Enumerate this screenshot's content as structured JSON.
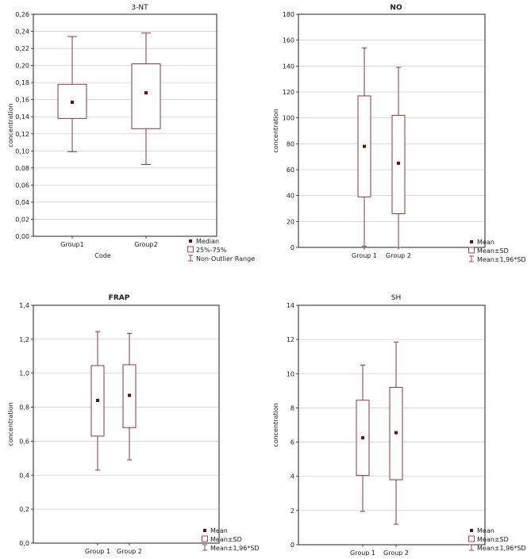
{
  "colors": {
    "box": "#8b3a3a",
    "marker": "#6b0d0d",
    "grid": "#d0d0d0",
    "frame": "#222222"
  },
  "chart_data": [
    {
      "type": "box",
      "title": "3-NT",
      "title_bold": false,
      "xlabel": "Code",
      "ylabel": "concentration",
      "ylim": [
        0,
        0.26
      ],
      "ytick_step": 0.02,
      "ytick_labels": [
        "0,00",
        "0,02",
        "0,04",
        "0,06",
        "0,08",
        "0,10",
        "0,12",
        "0,14",
        "0,16",
        "0,18",
        "0,20",
        "0,22",
        "0,24",
        "0,26"
      ],
      "categories": [
        "Group1",
        "Group2"
      ],
      "boxes": [
        {
          "center": 0.157,
          "q1": 0.138,
          "q3": 0.178,
          "low": 0.099,
          "high": 0.234
        },
        {
          "center": 0.168,
          "q1": 0.126,
          "q3": 0.202,
          "low": 0.084,
          "high": 0.238
        }
      ],
      "legend": [
        "Median",
        "25%-75%",
        "Non-Outlier Range"
      ]
    },
    {
      "type": "box",
      "title": "NO",
      "title_bold": true,
      "xlabel": "",
      "ylabel": "concentration",
      "ylim": [
        0,
        180
      ],
      "ytick_step": 20,
      "ytick_labels": [
        "0",
        "20",
        "40",
        "60",
        "80",
        "100",
        "120",
        "140",
        "160",
        "180"
      ],
      "categories": [
        "Group 1",
        "Group 2"
      ],
      "boxes": [
        {
          "center": 78,
          "q1": 39,
          "q3": 117,
          "low": 1,
          "high": 154
        },
        {
          "center": 65,
          "q1": 26,
          "q3": 102,
          "low": 0,
          "high": 139
        }
      ],
      "legend": [
        "Mean",
        "Mean±SD",
        "Mean±1,96*SD"
      ]
    },
    {
      "type": "box",
      "title": "FRAP",
      "title_bold": true,
      "xlabel": "",
      "ylabel": "concentration",
      "ylim": [
        0,
        1.4
      ],
      "ytick_step": 0.2,
      "ytick_labels": [
        "0,0",
        "0,2",
        "0,4",
        "0,6",
        "0,8",
        "1,0",
        "1,2",
        "1,4"
      ],
      "categories": [
        "Group 1",
        "Group 2"
      ],
      "boxes": [
        {
          "center": 0.84,
          "q1": 0.63,
          "q3": 1.045,
          "low": 0.43,
          "high": 1.245
        },
        {
          "center": 0.87,
          "q1": 0.68,
          "q3": 1.05,
          "low": 0.49,
          "high": 1.235
        }
      ],
      "legend": [
        "Mean",
        "Mean±SD",
        "Mean±1,96*SD"
      ]
    },
    {
      "type": "box",
      "title": "SH",
      "title_bold": false,
      "xlabel": "",
      "ylabel": "concentration",
      "ylim": [
        0,
        14
      ],
      "ytick_step": 2,
      "ytick_labels": [
        "0",
        "2",
        "4",
        "6",
        "8",
        "10",
        "12",
        "14"
      ],
      "categories": [
        "Group 1",
        "Group 2"
      ],
      "boxes": [
        {
          "center": 6.25,
          "q1": 4.05,
          "q3": 8.45,
          "low": 1.95,
          "high": 10.5
        },
        {
          "center": 6.55,
          "q1": 3.8,
          "q3": 9.2,
          "low": 1.2,
          "high": 11.85
        }
      ],
      "legend": [
        "Mean",
        "Mean±SD",
        "Mean±1,96*SD"
      ]
    }
  ]
}
